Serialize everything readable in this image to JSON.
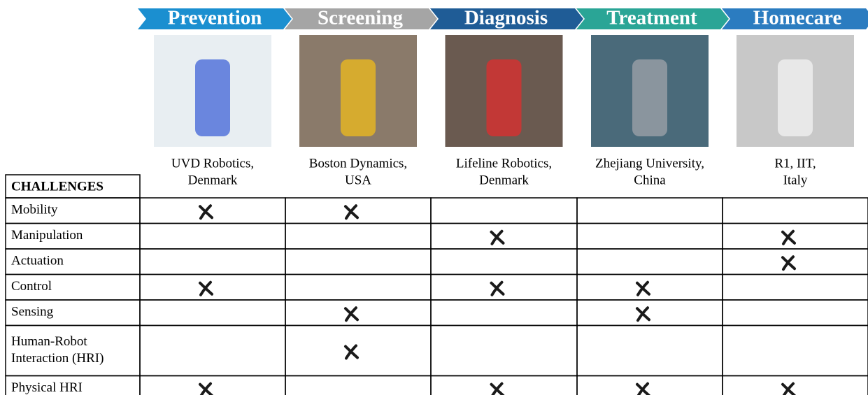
{
  "stages": [
    {
      "label": "Prevention",
      "color": "#1b8fd0",
      "caption": [
        "UVD Robotics,",
        "Denmark"
      ]
    },
    {
      "label": "Screening",
      "color": "#a5a5a5",
      "caption": [
        "Boston Dynamics,",
        "USA"
      ]
    },
    {
      "label": "Diagnosis",
      "color": "#1f5c96",
      "caption": [
        "Lifeline Robotics,",
        "Denmark"
      ]
    },
    {
      "label": "Treatment",
      "color": "#2aa596",
      "caption": [
        "Zhejiang University,",
        "China"
      ]
    },
    {
      "label": "Homecare",
      "color": "#2b7cc0",
      "caption": [
        "R1, IIT,",
        "Italy"
      ]
    }
  ],
  "table": {
    "header": "CHALLENGES",
    "rows": [
      {
        "label": [
          "Mobility"
        ],
        "marks": [
          true,
          true,
          false,
          false,
          false
        ]
      },
      {
        "label": [
          "Manipulation"
        ],
        "marks": [
          false,
          false,
          true,
          false,
          true
        ]
      },
      {
        "label": [
          "Actuation"
        ],
        "marks": [
          false,
          false,
          false,
          false,
          true
        ]
      },
      {
        "label": [
          "Control"
        ],
        "marks": [
          true,
          false,
          true,
          true,
          false
        ]
      },
      {
        "label": [
          "Sensing"
        ],
        "marks": [
          false,
          true,
          false,
          true,
          false
        ]
      },
      {
        "label": [
          "Human-Robot",
          "Interaction (HRI)"
        ],
        "marks": [
          false,
          true,
          false,
          false,
          false
        ]
      },
      {
        "label": [
          "Physical HRI"
        ],
        "marks": [
          true,
          false,
          true,
          true,
          true
        ]
      }
    ]
  }
}
